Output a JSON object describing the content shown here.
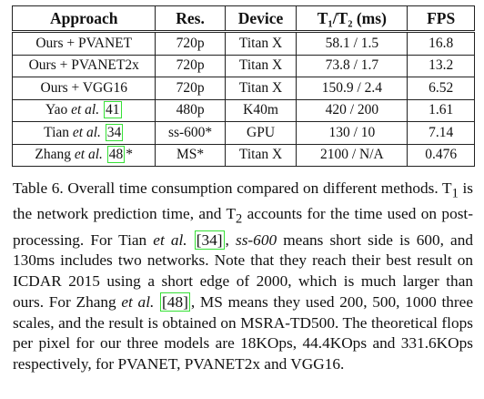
{
  "table": {
    "columns": [
      "Approach",
      "Res.",
      "Device",
      "T₁/T₂ (ms)",
      "FPS"
    ],
    "rows": [
      {
        "approach": "Ours + PVANET",
        "res": "720p",
        "device": "Titan X",
        "time": "58.1 / 1.5",
        "fps": "16.8"
      },
      {
        "approach": "Ours + PVANET2x",
        "res": "720p",
        "device": "Titan X",
        "time": "73.8 / 1.7",
        "fps": "13.2"
      },
      {
        "approach": "Ours + VGG16",
        "res": "720p",
        "device": "Titan X",
        "time": "150.9 / 2.4",
        "fps": "6.52"
      },
      {
        "approach_name": "Yao",
        "etal": "et al.",
        "cite": "41",
        "suffix": "",
        "res": "480p",
        "device": "K40m",
        "time": "420 / 200",
        "fps": "1.61"
      },
      {
        "approach_name": "Tian",
        "etal": "et al.",
        "cite": "34",
        "suffix": "",
        "res": "ss-600*",
        "device": "GPU",
        "time": "130 / 10",
        "fps": "7.14"
      },
      {
        "approach_name": "Zhang",
        "etal": "et al.",
        "cite": "48",
        "suffix": "*",
        "res": "MS*",
        "device": "Titan X",
        "time": "2100 / N/A",
        "fps": "0.476"
      }
    ]
  },
  "caption": {
    "p1": "Table 6. Overall time consumption compared on different methods. T",
    "sub1": "1",
    "p2": " is the network prediction time, and T",
    "sub2": "2",
    "p3": " accounts for the time used on post-processing. For Tian ",
    "etal1": "et al.",
    "p3b": " ",
    "cite1": "[34]",
    "p4": ", ",
    "ss600": "ss-600",
    "p5": " means short side is 600, and 130ms includes two networks. Note that they reach their best result on ICDAR 2015 using a short edge of 2000, which is much larger than ours. For Zhang ",
    "etal2": "et al.",
    "p5b": " ",
    "cite2": "[48]",
    "p6": ", MS means they used 200, 500, 1000 three scales, and the result is obtained on MSRA-TD500. The theoretical flops per pixel for our three models are 18KOps, 44.4KOps and 331.6KOps respectively, for PVANET, PVANET2x and VGG16."
  }
}
